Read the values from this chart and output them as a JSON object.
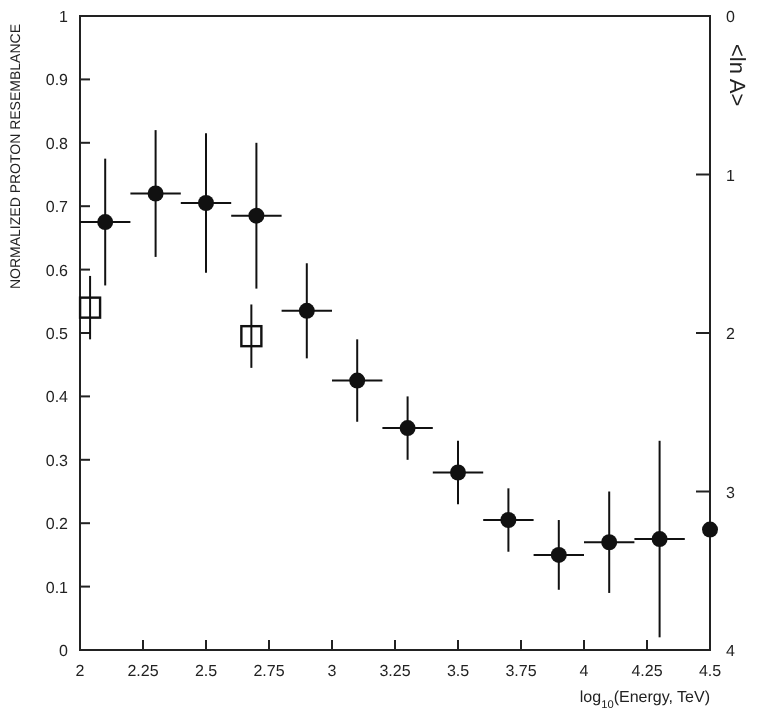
{
  "chart_data": {
    "type": "scatter",
    "xlabel": "log$_{10}$(Energy, TeV)",
    "ylabel": "NORMALIZED PROTON RESEMBLANCE",
    "y2label": "<ln A>",
    "xlim": [
      2,
      4.5
    ],
    "xticks": [
      2,
      2.25,
      2.5,
      2.75,
      3,
      3.25,
      3.5,
      3.75,
      4,
      4.25,
      4.5
    ],
    "ylim": [
      0,
      1
    ],
    "yticks": [
      0,
      0.1,
      0.2,
      0.3,
      0.4,
      0.5,
      0.6,
      0.7,
      0.8,
      0.9,
      1
    ],
    "y2lim": [
      4,
      0
    ],
    "y2ticks": [
      0,
      1,
      2,
      3,
      4
    ],
    "grid": false,
    "series": [
      {
        "color": "#111111",
        "marker": "circle",
        "x": [
          2.1,
          2.3,
          2.5,
          2.7,
          2.9,
          3.1,
          3.3,
          3.5,
          3.7,
          3.9,
          4.1,
          4.3,
          4.5
        ],
        "values": [
          0.675,
          0.72,
          0.705,
          0.685,
          0.535,
          0.425,
          0.35,
          0.28,
          0.205,
          0.15,
          0.17,
          0.175,
          0.19
        ],
        "errors": [
          0.1,
          0.1,
          0.11,
          0.115,
          0.075,
          0.065,
          0.05,
          0.05,
          0.05,
          0.055,
          0.08,
          [
            0.02,
            0.33
          ],
          null
        ],
        "xerrors": [
          0.1,
          0.1,
          0.1,
          0.1,
          0.1,
          0.1,
          0.1,
          0.1,
          0.1,
          0.1,
          0.1,
          0.1,
          null
        ]
      },
      {
        "color": "#111111",
        "marker": "square",
        "x": [
          2.04,
          2.68
        ],
        "values": [
          0.54,
          0.495
        ],
        "errors": [
          0.05,
          0.05
        ]
      }
    ]
  }
}
